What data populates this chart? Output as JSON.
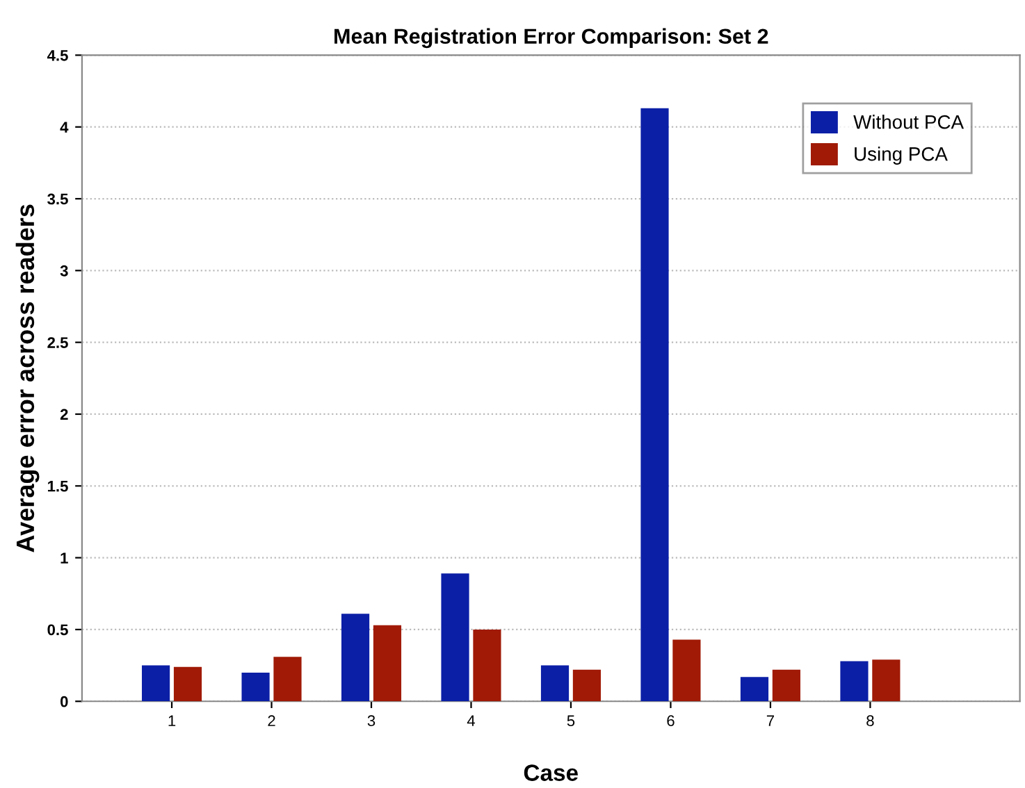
{
  "chart_data": {
    "type": "bar",
    "title": "Mean Registration Error Comparison: Set 2",
    "xlabel": "Case",
    "ylabel": "Average error across readers",
    "categories": [
      "1",
      "2",
      "3",
      "4",
      "5",
      "6",
      "7",
      "8"
    ],
    "series": [
      {
        "name": "Without PCA",
        "color": "#0b1fa6",
        "values": [
          0.25,
          0.2,
          0.61,
          0.89,
          0.25,
          4.13,
          0.17,
          0.28
        ]
      },
      {
        "name": "Using PCA",
        "color": "#a01a06",
        "values": [
          0.24,
          0.31,
          0.53,
          0.5,
          0.22,
          0.43,
          0.22,
          0.29
        ]
      }
    ],
    "ylim": [
      0,
      4.5
    ],
    "yticks": [
      0,
      0.5,
      1,
      1.5,
      2,
      2.5,
      3,
      3.5,
      4,
      4.5
    ],
    "grid": "y",
    "legend": "top right"
  }
}
